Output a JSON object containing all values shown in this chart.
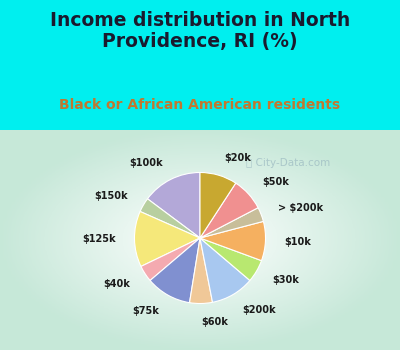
{
  "title": "Income distribution in North\nProvidence, RI (%)",
  "subtitle": "Black or African American residents",
  "labels": [
    "$100k",
    "$150k",
    "$125k",
    "$40k",
    "$75k",
    "$60k",
    "$200k",
    "$30k",
    "$10k",
    "> $200k",
    "$50k",
    "$20k"
  ],
  "sizes": [
    14.5,
    3.5,
    13.5,
    4.0,
    11.0,
    5.5,
    10.5,
    5.5,
    9.5,
    3.5,
    8.0,
    9.0
  ],
  "colors": [
    "#b3a8d8",
    "#b8cfa0",
    "#f5e87a",
    "#f4aab0",
    "#8090d0",
    "#f0c898",
    "#a8c8f0",
    "#b8e870",
    "#f5b060",
    "#c8be9a",
    "#f09090",
    "#c8a830"
  ],
  "bg_color_outer": "#00efef",
  "title_color": "#1a1a2e",
  "subtitle_color": "#c07830",
  "watermark": "City-Data.com",
  "startangle": 90,
  "label_fontsize": 7.0,
  "title_fontsize": 13.5,
  "subtitle_fontsize": 10.0
}
